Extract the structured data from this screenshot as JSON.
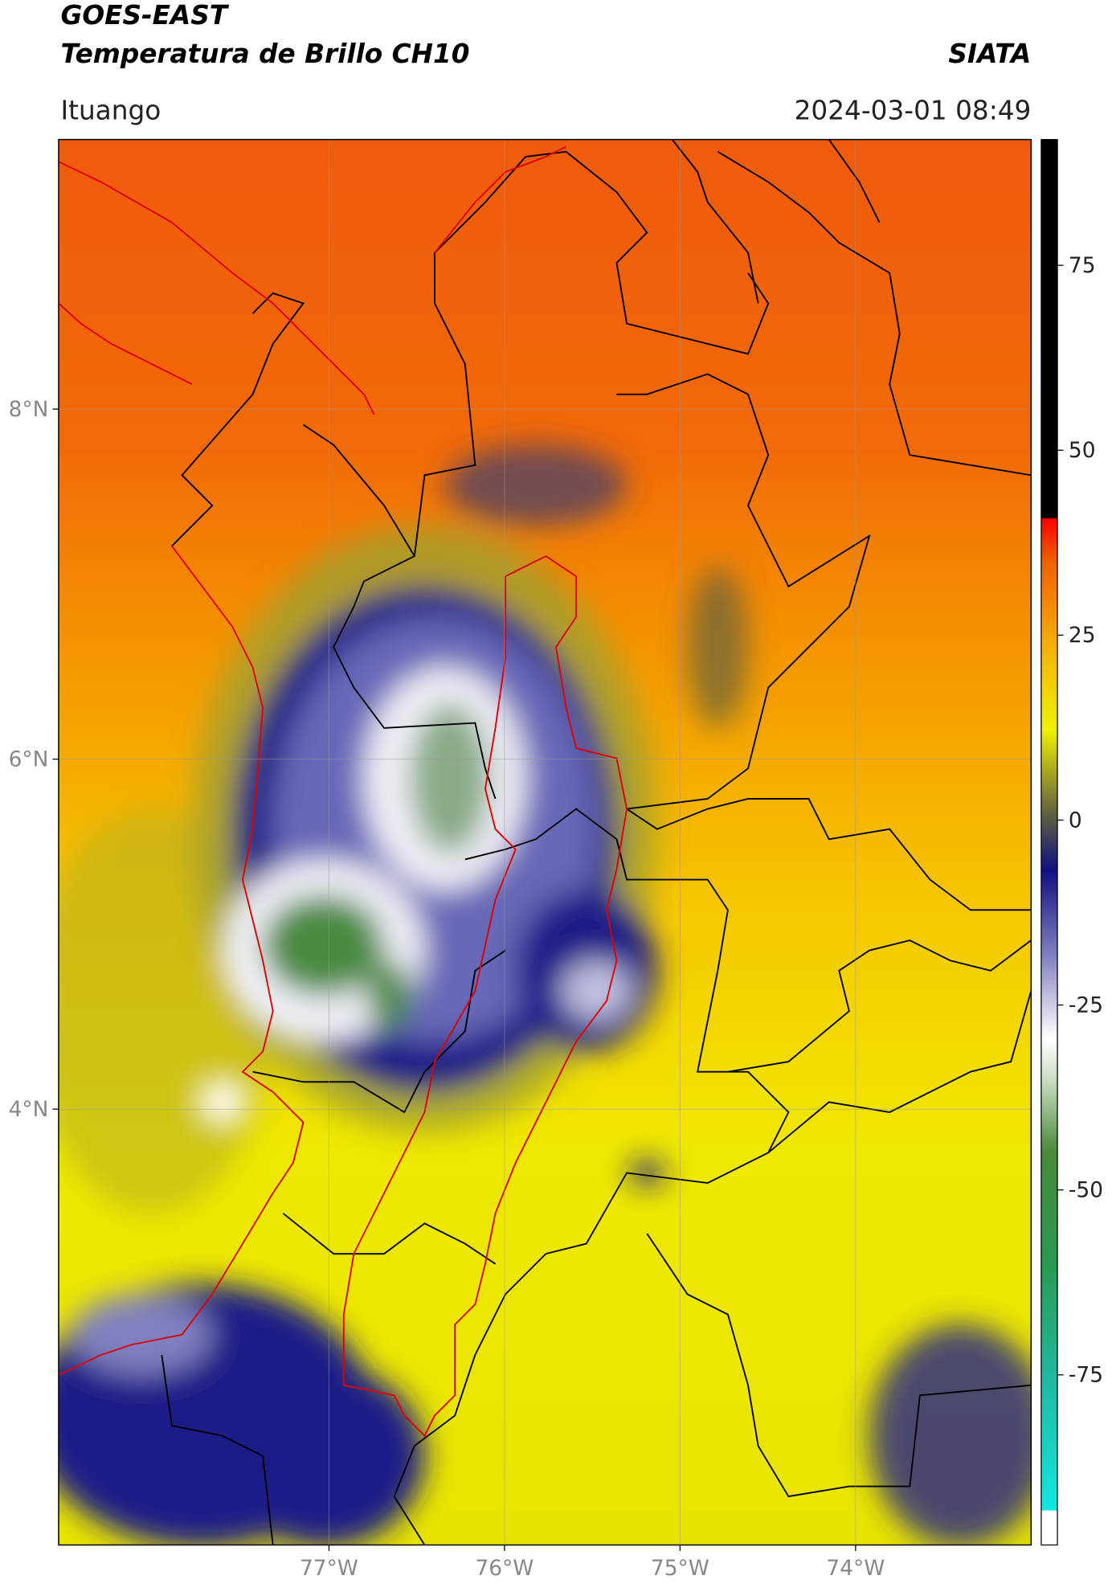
{
  "header": {
    "title": "GOES-EAST",
    "subtitle": "Temperatura de Brillo CH10",
    "source": "SIATA",
    "location": "Ituango",
    "datetime": "2024-03-01 08:49"
  },
  "map": {
    "xlim": [
      -78.54,
      -73.0
    ],
    "ylim": [
      1.51,
      9.54
    ],
    "xticks": [
      {
        "value": -77,
        "label": "77°W"
      },
      {
        "value": -76,
        "label": "76°W"
      },
      {
        "value": -75,
        "label": "75°W"
      },
      {
        "value": -74,
        "label": "74°W"
      }
    ],
    "yticks": [
      {
        "value": 8,
        "label": "8°N"
      },
      {
        "value": 6,
        "label": "6°N"
      },
      {
        "value": 4,
        "label": "4°N"
      }
    ]
  },
  "colorbar": {
    "lim": [
      -98,
      92
    ],
    "ticks": [
      75,
      50,
      25,
      0,
      -25,
      -50,
      -75
    ]
  }
}
